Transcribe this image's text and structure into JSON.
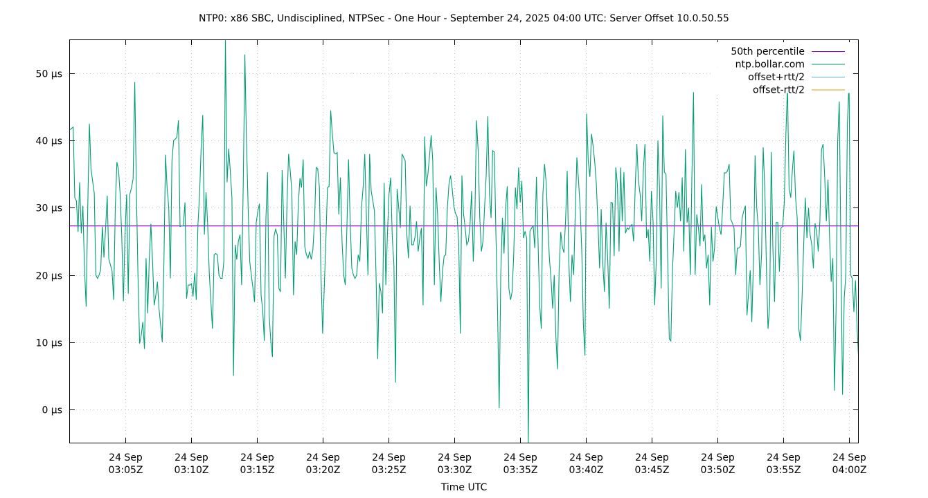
{
  "title": "NTP0: x86 SBC, Undisciplined, NTPSec - One Hour - September 24, 2025 04:00 UTC: Server Offset 10.0.50.55",
  "colors": {
    "percentile": "#9400d3",
    "server": "#009e73",
    "offset_plus": "#56b4e9",
    "offset_minus": "#e69f00",
    "grid": "#c0c0c0",
    "axis": "#000000"
  },
  "chart_data": {
    "type": "line",
    "title": "NTP0: x86 SBC, Undisciplined, NTPSec - One Hour - September 24, 2025 04:00 UTC: Server Offset 10.0.50.55",
    "xlabel": "Time UTC",
    "ylabel": "",
    "ylim": [
      -5,
      55
    ],
    "xlim": [
      "24 Sep 03:00:40Z",
      "24 Sep 04:00:40Z"
    ],
    "grid": true,
    "legend_position": "top-right",
    "yticks": [
      "0 µs",
      "10 µs",
      "20 µs",
      "30 µs",
      "40 µs",
      "50 µs"
    ],
    "ytick_values": [
      0,
      10,
      20,
      30,
      40,
      50
    ],
    "xticks": [
      {
        "date": "24 Sep",
        "time": "03:05Z"
      },
      {
        "date": "24 Sep",
        "time": "03:10Z"
      },
      {
        "date": "24 Sep",
        "time": "03:15Z"
      },
      {
        "date": "24 Sep",
        "time": "03:20Z"
      },
      {
        "date": "24 Sep",
        "time": "03:25Z"
      },
      {
        "date": "24 Sep",
        "time": "03:30Z"
      },
      {
        "date": "24 Sep",
        "time": "03:35Z"
      },
      {
        "date": "24 Sep",
        "time": "03:40Z"
      },
      {
        "date": "24 Sep",
        "time": "03:45Z"
      },
      {
        "date": "24 Sep",
        "time": "03:50Z"
      },
      {
        "date": "24 Sep",
        "time": "03:55Z"
      },
      {
        "date": "24 Sep",
        "time": "04:00Z"
      }
    ],
    "legend": [
      "50th percentile",
      "ntp.bollar.com",
      "offset+rtt/2",
      "offset-rtt/2"
    ],
    "series": [
      {
        "name": "50th percentile",
        "x_minutes": [
          0.7,
          60.7
        ],
        "values": [
          27.3,
          27.3
        ]
      },
      {
        "name": "ntp.bollar.com",
        "x_minutes_start": 0.7,
        "x_minutes_step": 0.1724,
        "values": [
          41.6,
          41.8,
          42.0,
          31.5,
          31.0,
          26.4,
          33.8,
          26.2,
          30.3,
          21.0,
          15.3,
          30.0,
          42.5,
          35.8,
          34.0,
          32.2,
          20.0,
          19.5,
          20.0,
          20.8,
          27.2,
          22.6,
          27.0,
          31.8,
          22.4,
          21.5,
          20.6,
          16.3,
          30.0,
          36.8,
          35.6,
          32.0,
          25.8,
          16.1,
          26.0,
          32.0,
          17.2,
          32.0,
          33.0,
          34.3,
          48.7,
          33.0,
          20.0,
          9.8,
          11.0,
          13.0,
          9.0,
          22.5,
          14.3,
          22.5,
          27.6,
          22.0,
          15.5,
          17.0,
          19.0,
          15.0,
          12.5,
          10.0,
          22.0,
          37.9,
          33.0,
          30.0,
          19.5,
          37.0,
          40.0,
          40.2,
          40.5,
          43.0,
          27.2,
          27.3,
          27.3,
          30.8,
          16.5,
          18.5,
          18.5,
          18.7,
          16.8,
          20.3,
          16.3,
          27.4,
          31.8,
          38.8,
          43.8,
          26.0,
          32.3,
          27.7,
          20.5,
          16.0,
          12.0,
          23.0,
          23.2,
          23.0,
          20.0,
          19.5,
          19.5,
          22.0,
          55.0,
          33.8,
          38.8,
          35.5,
          31.5,
          5.0,
          24.5,
          22.3,
          25.0,
          26.0,
          18.5,
          34.0,
          52.8,
          40.0,
          30.0,
          22.0,
          20.0,
          18.0,
          16.0,
          27.8,
          29.5,
          30.6,
          17.0,
          14.8,
          10.2,
          28.5,
          35.3,
          14.0,
          10.2,
          7.8,
          25.8,
          26.8,
          26.0,
          18.0,
          17.5,
          35.6,
          28.0,
          19.5,
          30.7,
          38.0,
          35.5,
          32.5,
          17.0,
          25.0,
          23.0,
          30.6,
          34.4,
          33.0,
          37.2,
          24.2,
          23.0,
          22.5,
          23.5,
          22.3,
          23.8,
          28.0,
          36.0,
          35.8,
          33.0,
          20.0,
          11.3,
          18.0,
          25.0,
          33.0,
          33.2,
          44.5,
          41.0,
          38.2,
          38.0,
          38.2,
          29.0,
          34.5,
          25.0,
          20.0,
          18.5,
          27.0,
          37.2,
          28.0,
          21.0,
          20.0,
          19.5,
          20.0,
          23.0,
          22.0,
          30.0,
          33.0,
          38.0,
          29.0,
          20.0,
          38.0,
          32.5,
          31.0,
          29.5,
          20.0,
          7.5,
          18.8,
          17.5,
          14.3,
          33.7,
          18.5,
          26.0,
          32.0,
          34.5,
          25.7,
          21.5,
          4.0,
          32.8,
          30.0,
          27.0,
          38.0,
          37.5,
          37.0,
          26.0,
          22.5,
          30.3,
          24.5,
          24.5,
          25.6,
          28.0,
          23.5,
          25.5,
          27.0,
          15.5,
          40.6,
          33.2,
          35.0,
          37.7,
          40.8,
          37.0,
          18.5,
          33.0,
          29.0,
          22.0,
          16.0,
          20.5,
          22.8,
          23.0,
          29.8,
          33.5,
          34.8,
          32.8,
          30.3,
          29.2,
          28.7,
          25.0,
          11.3,
          34.8,
          29.2,
          27.0,
          24.5,
          25.0,
          27.5,
          32.5,
          22.0,
          28.5,
          43.0,
          38.6,
          28.7,
          23.5,
          25.0,
          30.0,
          35.0,
          43.6,
          32.0,
          28.5,
          38.5,
          38.3,
          26.0,
          15.0,
          0.2,
          20.0,
          28.5,
          23.2,
          30.0,
          33.2,
          18.0,
          16.3,
          17.5,
          23.0,
          33.0,
          29.8,
          36.0,
          30.8,
          34.0,
          25.5,
          26.5,
          25.5,
          -5.0,
          26.5,
          27.0,
          27.3,
          24.0,
          34.6,
          25.0,
          15.5,
          12.0,
          32.0,
          36.5,
          33.8,
          27.8,
          22.5,
          19.5,
          15.0,
          20.0,
          11.0,
          6.0,
          20.5,
          26.4,
          24.2,
          23.3,
          28.2,
          35.5,
          21.8,
          16.0,
          23.0,
          20.0,
          29.5,
          37.5,
          34.0,
          30.0,
          23.5,
          12.5,
          8.0,
          44.0,
          37.0,
          34.6,
          41.0,
          39.2,
          36.8,
          33.5,
          27.5,
          21.0,
          29.8,
          21.5,
          17.5,
          27.8,
          22.5,
          15.0,
          30.8,
          30.7,
          22.8,
          36.0,
          33.5,
          23.5,
          36.0,
          28.0,
          35.3,
          26.2,
          27.0,
          26.8,
          27.3,
          27.5,
          25.0,
          33.0,
          39.5,
          34.0,
          32.0,
          28.0,
          35.5,
          39.5,
          25.5,
          26.8,
          22.0,
          32.5,
          28.0,
          15.5,
          22.0,
          40.0,
          33.0,
          18.0,
          43.7,
          35.3,
          35.0,
          23.0,
          10.5,
          10.2,
          20.5,
          26.5,
          32.5,
          30.0,
          32.3,
          28.0,
          34.5,
          23.5,
          38.7,
          27.8,
          30.0,
          20.0,
          34.8,
          47.2,
          20.0,
          29.0,
          27.0,
          24.3,
          33.5,
          25.0,
          26.0,
          21.0,
          23.0,
          15.5,
          27.2,
          22.0,
          24.0,
          30.2,
          28.5,
          27.0,
          26.0,
          30.0,
          35.2,
          35.2,
          35.5,
          36.5,
          28.3,
          27.7,
          27.0,
          20.0,
          24.0,
          24.0,
          24.3,
          28.5,
          29.5,
          30.3,
          14.0,
          17.5,
          20.7,
          13.0,
          22.0,
          37.8,
          30.0,
          27.0,
          18.5,
          23.0,
          39.0,
          33.0,
          21.0,
          12.0,
          15.5,
          38.3,
          24.0,
          16.0,
          27.8,
          27.8,
          20.5,
          27.0,
          27.2,
          30.6,
          41.0,
          48.0,
          33.0,
          31.5,
          35.5,
          38.5,
          31.5,
          28.5,
          12.0,
          10.2,
          16.5,
          24.5,
          31.5,
          25.5,
          30.0,
          26.0,
          24.5,
          21.0,
          27.7,
          26.5,
          23.5,
          28.0,
          38.6,
          39.5,
          34.5,
          28.0,
          34.2,
          25.5,
          19.0,
          22.5,
          2.8,
          15.0,
          40.0,
          45.8,
          22.8,
          2.2,
          16.5,
          20.0,
          42.5,
          48.8,
          20.0,
          19.5,
          14.5,
          19.2,
          12.0,
          7.0
        ]
      },
      {
        "name": "offset+rtt/2",
        "values": []
      },
      {
        "name": "offset-rtt/2",
        "values": []
      }
    ]
  },
  "axis": {
    "xlabel": "Time UTC"
  }
}
